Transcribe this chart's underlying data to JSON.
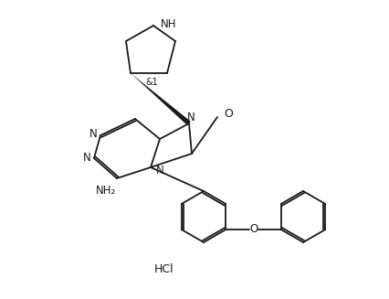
{
  "background": "#ffffff",
  "line_color": "#1a1a1a",
  "text_color": "#1a1a1a",
  "hcl_label": "HCl",
  "stereo_label": "&1",
  "nh_label": "NH",
  "o_label": "O",
  "nh2_label": "NH₂",
  "o_bridge_label": "O",
  "figsize": [
    4.26,
    3.27
  ],
  "dpi": 100
}
